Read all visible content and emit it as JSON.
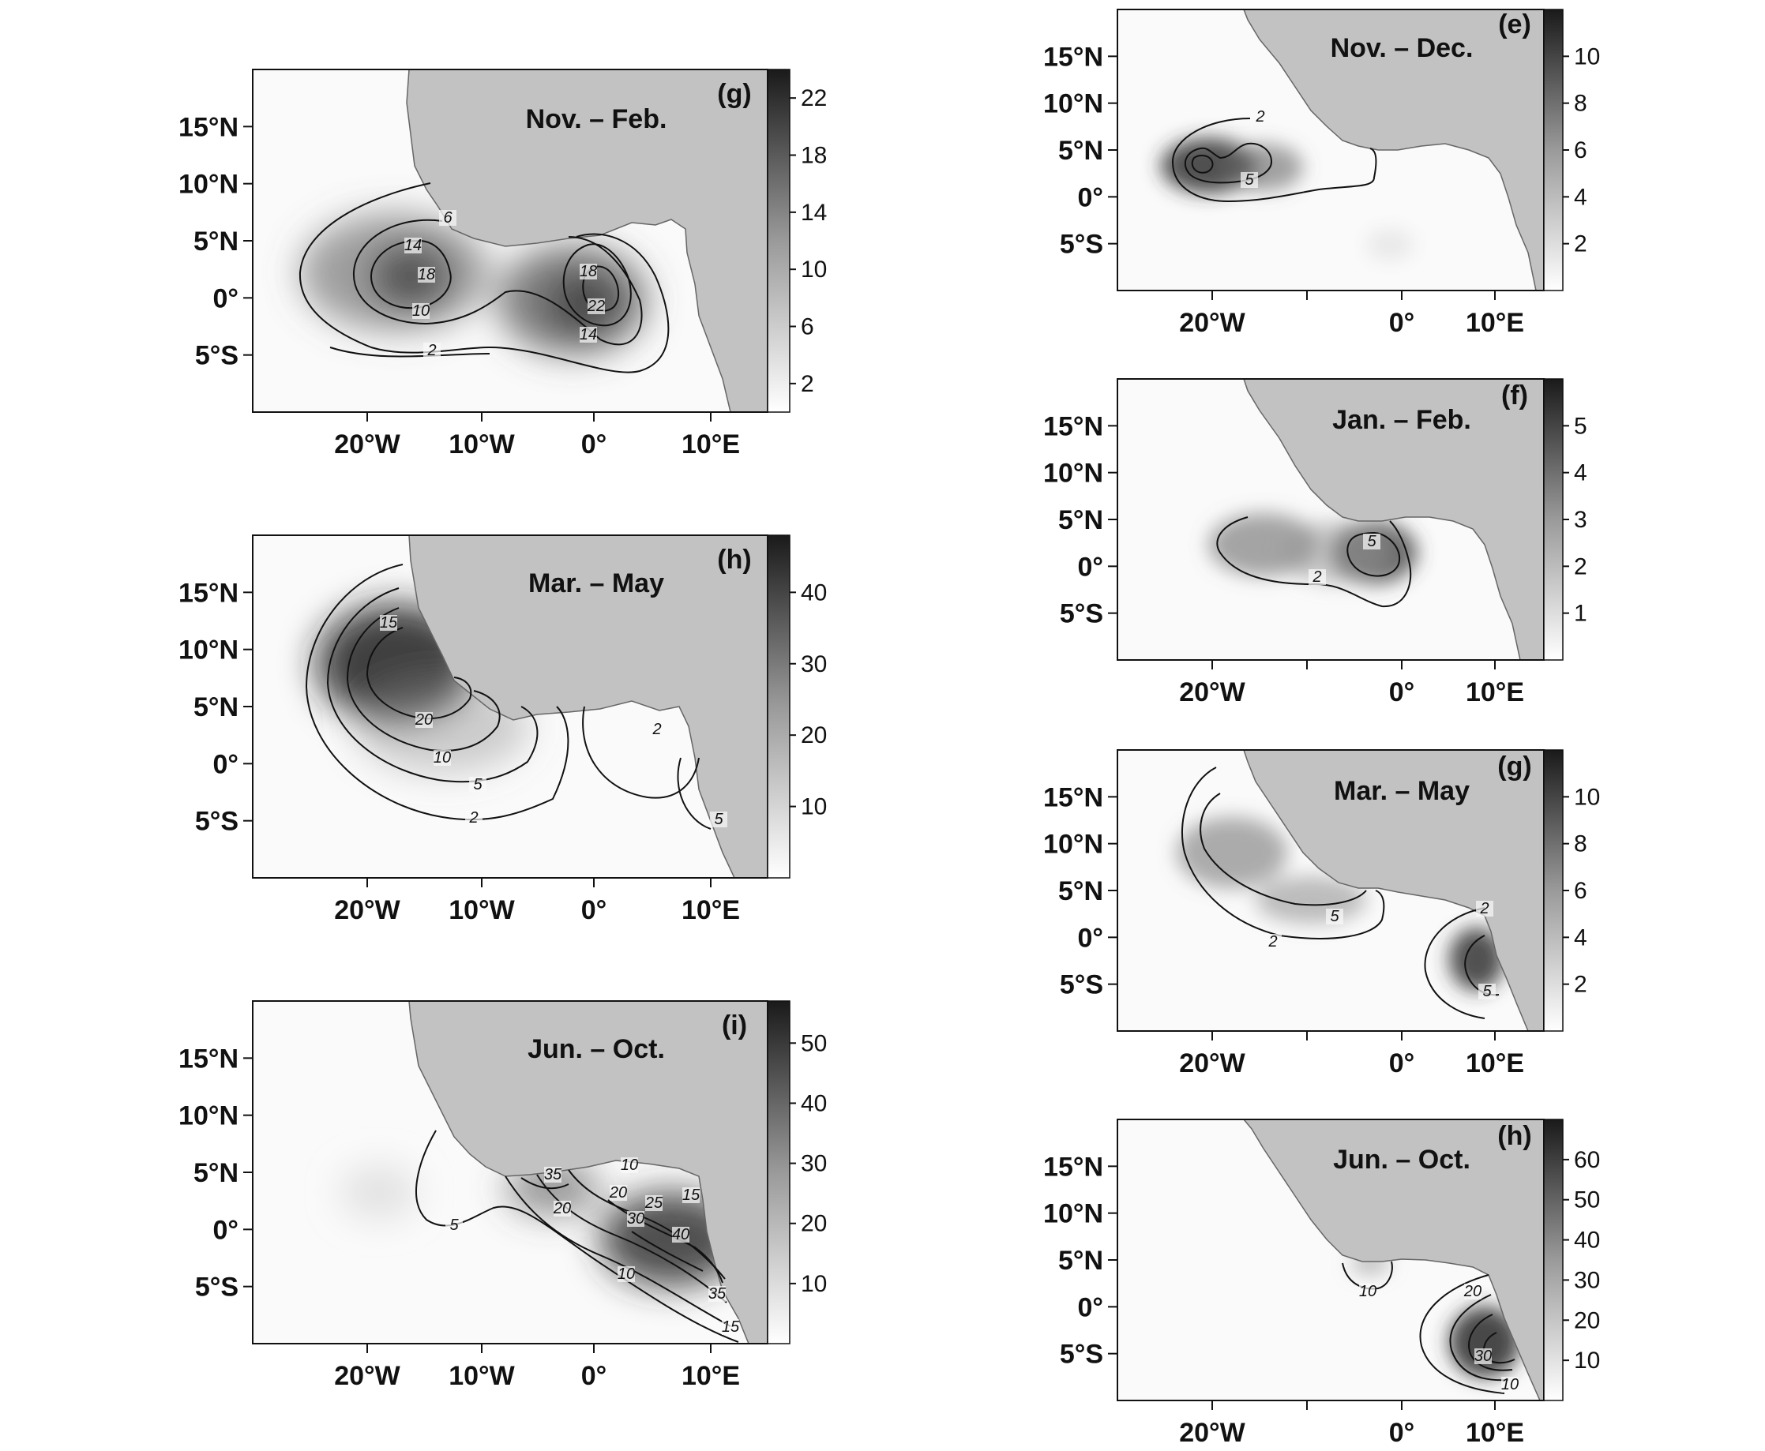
{
  "panels": [
    {
      "id": "g-left",
      "panel_label": "(g)",
      "title": "Nov. – Feb.",
      "lat_ticks": [
        "15°N",
        "10°N",
        "5°N",
        "0°",
        "5°S"
      ],
      "lon_ticks": [
        "20°W",
        "10°W",
        "0°",
        "10°E"
      ],
      "colorbar_ticks": [
        "22",
        "18",
        "14",
        "10",
        "6",
        "2"
      ],
      "contour_labels": [
        "6",
        "14",
        "18",
        "10",
        "2",
        "18",
        "22",
        "14"
      ],
      "max_value": 24
    },
    {
      "id": "h-left",
      "panel_label": "(h)",
      "title": "Mar. – May",
      "lat_ticks": [
        "15°N",
        "10°N",
        "5°N",
        "0°",
        "5°S"
      ],
      "lon_ticks": [
        "20°W",
        "10°W",
        "0°",
        "10°E"
      ],
      "colorbar_ticks": [
        "40",
        "30",
        "20",
        "10"
      ],
      "contour_labels": [
        "15",
        "20",
        "10",
        "5",
        "2",
        "2",
        "5"
      ],
      "max_value": 48
    },
    {
      "id": "i-left",
      "panel_label": "(i)",
      "title": "Jun. – Oct.",
      "lat_ticks": [
        "15°N",
        "10°N",
        "5°N",
        "0°",
        "5°S"
      ],
      "lon_ticks": [
        "20°W",
        "10°W",
        "0°",
        "10°E"
      ],
      "colorbar_ticks": [
        "50",
        "40",
        "30",
        "20",
        "10"
      ],
      "contour_labels": [
        "5",
        "35",
        "10",
        "20",
        "15",
        "20",
        "25",
        "40",
        "30",
        "10",
        "35",
        "15"
      ],
      "max_value": 57
    },
    {
      "id": "e-right",
      "panel_label": "(e)",
      "title": "Nov. – Dec.",
      "lat_ticks": [
        "15°N",
        "10°N",
        "5°N",
        "0°",
        "5°S"
      ],
      "lon_ticks": [
        "20°W",
        "0°",
        "10°E"
      ],
      "colorbar_ticks": [
        "10",
        "8",
        "6",
        "4",
        "2"
      ],
      "contour_labels": [
        "2",
        "5"
      ],
      "max_value": 12
    },
    {
      "id": "f-right",
      "panel_label": "(f)",
      "title": "Jan. – Feb.",
      "lat_ticks": [
        "15°N",
        "10°N",
        "5°N",
        "0°",
        "5°S"
      ],
      "lon_ticks": [
        "20°W",
        "0°",
        "10°E"
      ],
      "colorbar_ticks": [
        "5",
        "4",
        "3",
        "2",
        "1"
      ],
      "contour_labels": [
        "5",
        "2"
      ],
      "max_value": 6
    },
    {
      "id": "g-right",
      "panel_label": "(g)",
      "title": "Mar. – May",
      "lat_ticks": [
        "15°N",
        "10°N",
        "5°N",
        "0°",
        "5°S"
      ],
      "lon_ticks": [
        "20°W",
        "0°",
        "10°E"
      ],
      "colorbar_ticks": [
        "10",
        "8",
        "6",
        "4",
        "2"
      ],
      "contour_labels": [
        "5",
        "2",
        "2",
        "5"
      ],
      "max_value": 12
    },
    {
      "id": "h-right",
      "panel_label": "(h)",
      "title": "Jun. – Oct.",
      "lat_ticks": [
        "15°N",
        "10°N",
        "5°N",
        "0°",
        "5°S"
      ],
      "lon_ticks": [
        "20°W",
        "0°",
        "10°E"
      ],
      "colorbar_ticks": [
        "60",
        "50",
        "40",
        "30",
        "20",
        "10"
      ],
      "contour_labels": [
        "10",
        "20",
        "30",
        "10"
      ],
      "max_value": 70
    }
  ],
  "colors": {
    "land": "#c2c2c2",
    "ocean": "#fafafa",
    "frame": "#111111",
    "contour": "#111111",
    "field_dark": "#2a2a2a"
  }
}
